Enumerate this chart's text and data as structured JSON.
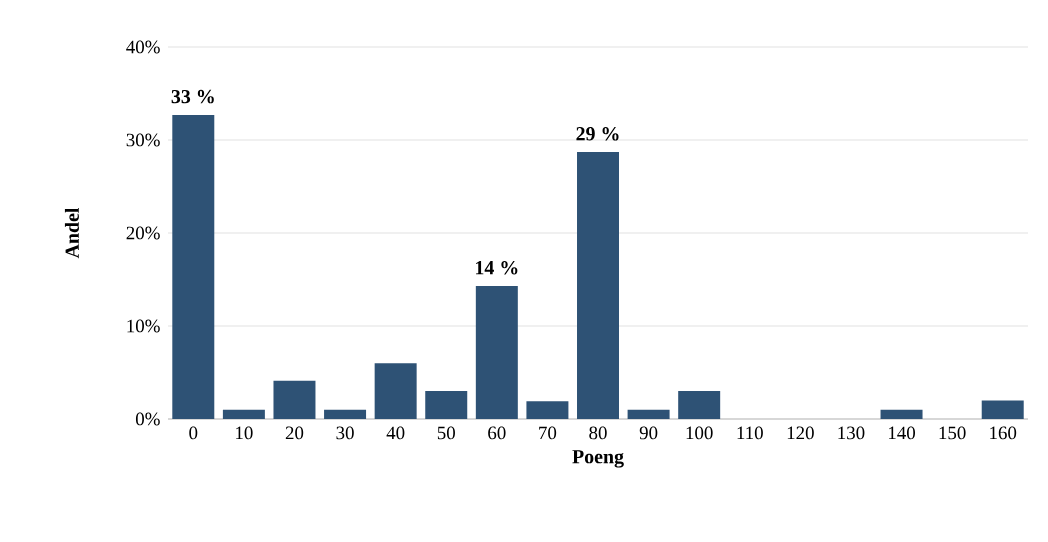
{
  "chart_data": {
    "type": "bar",
    "xlabel": "Poeng",
    "ylabel": "Andel",
    "categories": [
      "0",
      "10",
      "20",
      "30",
      "40",
      "50",
      "60",
      "70",
      "80",
      "90",
      "100",
      "110",
      "120",
      "130",
      "140",
      "150",
      "160"
    ],
    "values": [
      32.7,
      1,
      4.1,
      1,
      6,
      3,
      14.3,
      1.9,
      28.7,
      1,
      3,
      0,
      0,
      0,
      1,
      0,
      2
    ],
    "value_labels": [
      "33 %",
      null,
      null,
      null,
      null,
      null,
      "14 %",
      null,
      "29 %",
      null,
      null,
      null,
      null,
      null,
      null,
      null,
      null
    ],
    "color": "#2e5275",
    "ylim": [
      0,
      40
    ],
    "yticks": [
      {
        "value": 0,
        "label": "0%"
      },
      {
        "value": 10,
        "label": "10%"
      },
      {
        "value": 20,
        "label": "20%"
      },
      {
        "value": 30,
        "label": "30%"
      },
      {
        "value": 40,
        "label": "40%"
      }
    ],
    "grid": "y"
  }
}
